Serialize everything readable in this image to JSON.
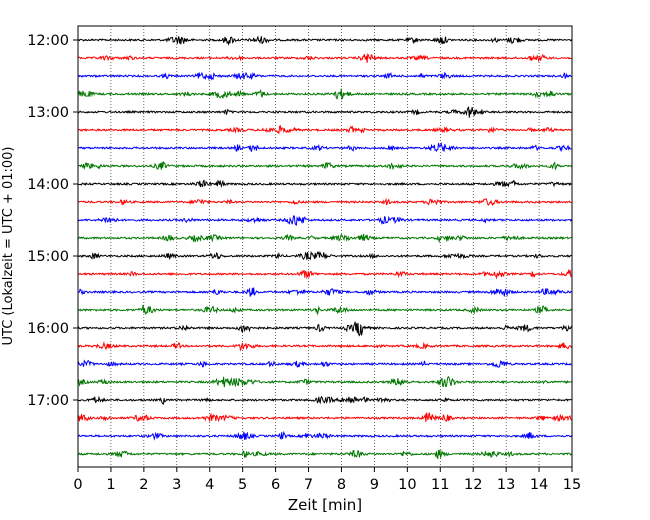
{
  "chart_data": {
    "type": "line",
    "title": "",
    "xlabel": "Zeit  [min]",
    "ylabel": "UTC (Lokalzeit = UTC + 01:00)",
    "xlim": [
      0,
      15
    ],
    "x_ticks": [
      "0",
      "1",
      "2",
      "3",
      "4",
      "5",
      "6",
      "7",
      "8",
      "9",
      "10",
      "11",
      "12",
      "13",
      "14",
      "15"
    ],
    "y_ticks": [
      {
        "label": "12:00",
        "trace_index": 0
      },
      {
        "label": "13:00",
        "trace_index": 4
      },
      {
        "label": "14:00",
        "trace_index": 8
      },
      {
        "label": "15:00",
        "trace_index": 12
      },
      {
        "label": "16:00",
        "trace_index": 16
      },
      {
        "label": "17:00",
        "trace_index": 20
      }
    ],
    "grid": "vertical dotted at each minute",
    "trace_colors": [
      "#000000",
      "#ff0000",
      "#0000ff",
      "#007700"
    ],
    "traces": [
      {
        "start": "12:00",
        "color": "#000000"
      },
      {
        "start": "12:15",
        "color": "#ff0000"
      },
      {
        "start": "12:30",
        "color": "#0000ff"
      },
      {
        "start": "12:45",
        "color": "#007700"
      },
      {
        "start": "13:00",
        "color": "#000000"
      },
      {
        "start": "13:15",
        "color": "#ff0000"
      },
      {
        "start": "13:30",
        "color": "#0000ff"
      },
      {
        "start": "13:45",
        "color": "#007700"
      },
      {
        "start": "14:00",
        "color": "#000000"
      },
      {
        "start": "14:15",
        "color": "#ff0000"
      },
      {
        "start": "14:30",
        "color": "#0000ff"
      },
      {
        "start": "14:45",
        "color": "#007700"
      },
      {
        "start": "15:00",
        "color": "#000000"
      },
      {
        "start": "15:15",
        "color": "#ff0000"
      },
      {
        "start": "15:30",
        "color": "#0000ff"
      },
      {
        "start": "15:45",
        "color": "#007700"
      },
      {
        "start": "16:00",
        "color": "#000000"
      },
      {
        "start": "16:15",
        "color": "#ff0000"
      },
      {
        "start": "16:30",
        "color": "#0000ff"
      },
      {
        "start": "16:45",
        "color": "#007700"
      },
      {
        "start": "17:00",
        "color": "#000000"
      },
      {
        "start": "17:15",
        "color": "#ff0000"
      },
      {
        "start": "17:30",
        "color": "#0000ff"
      },
      {
        "start": "17:45",
        "color": "#007700"
      }
    ]
  }
}
